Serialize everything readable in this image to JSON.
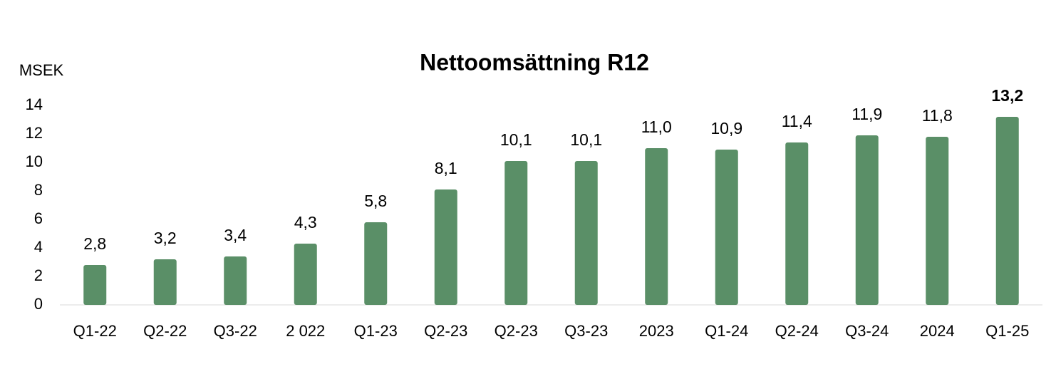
{
  "chart_data": {
    "type": "bar",
    "title": "Nettoomsättning R12",
    "y_label": "MSEK",
    "categories": [
      "Q1-22",
      "Q2-22",
      "Q3-22",
      "2 022",
      "Q1-23",
      "Q2-23",
      "Q2-23",
      "Q3-23",
      "2023",
      "Q1-24",
      "Q2-24",
      "Q3-24",
      "2024",
      "Q1-25"
    ],
    "values": [
      2.8,
      3.2,
      3.4,
      4.3,
      5.8,
      8.1,
      10.1,
      10.1,
      11.0,
      10.9,
      11.4,
      11.9,
      11.8,
      13.2
    ],
    "value_labels": [
      "2,8",
      "3,2",
      "3,4",
      "4,3",
      "5,8",
      "8,1",
      "10,1",
      "10,1",
      "11,0",
      "10,9",
      "11,4",
      "11,9",
      "11,8",
      "13,2"
    ],
    "color": "#5a8f67",
    "ylim": [
      0,
      14
    ],
    "yticks": [
      0,
      2,
      4,
      6,
      8,
      10,
      12,
      14
    ],
    "grid": false
  }
}
